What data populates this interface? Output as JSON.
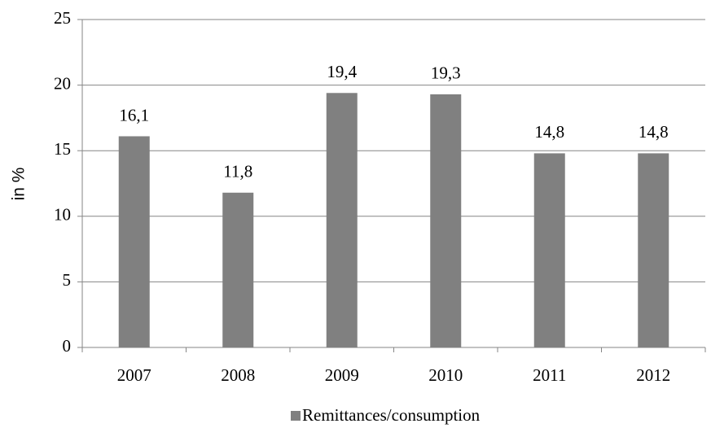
{
  "chart_data": {
    "type": "bar",
    "y_label": "in %",
    "categories": [
      "2007",
      "2008",
      "2009",
      "2010",
      "2011",
      "2012"
    ],
    "series": [
      {
        "name": "Remittances/consumption",
        "color": "#808080",
        "values": [
          16.1,
          11.8,
          19.4,
          19.3,
          14.8,
          14.8
        ],
        "value_labels": [
          "16,1",
          "11,8",
          "19,4",
          "19,3",
          "14,8",
          "14,8"
        ]
      }
    ],
    "ylim": [
      0,
      25
    ],
    "yticks": [
      0,
      5,
      10,
      15,
      20,
      25
    ],
    "grid": true,
    "legend": "bottom"
  }
}
